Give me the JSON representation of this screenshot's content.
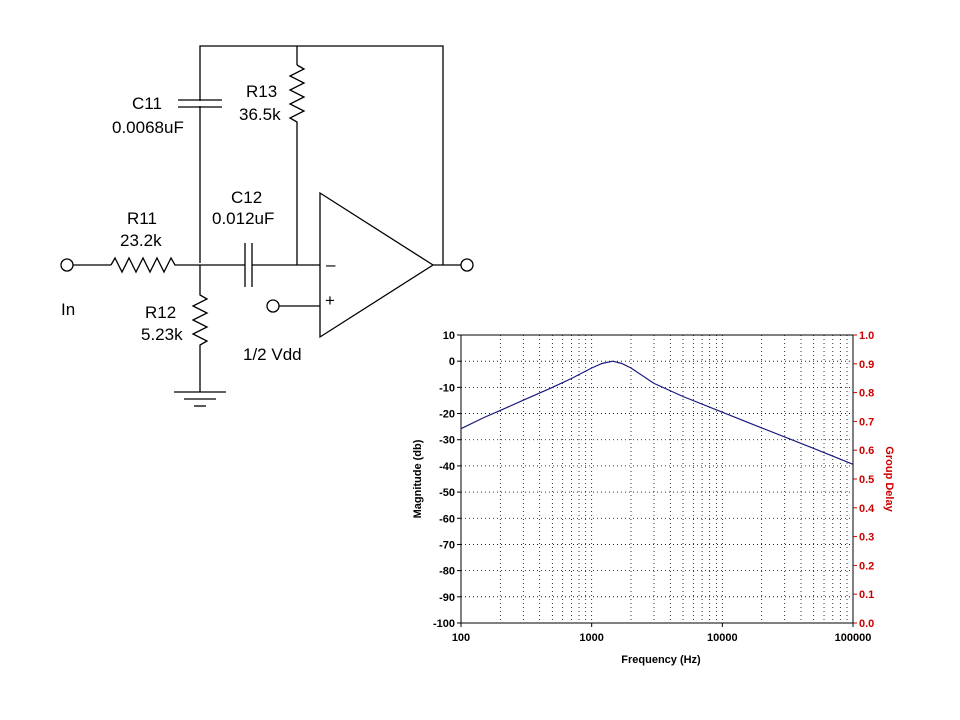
{
  "schematic": {
    "components": {
      "c11": {
        "ref": "C11",
        "value": "0.0068uF"
      },
      "r13": {
        "ref": "R13",
        "value": "36.5k"
      },
      "c12": {
        "ref": "C12",
        "value": "0.012uF"
      },
      "r11": {
        "ref": "R11",
        "value": "23.2k"
      },
      "r12": {
        "ref": "R12",
        "value": "5.23k"
      }
    },
    "input_label": "In",
    "reference_label": "1/2 Vdd",
    "opamp": {
      "minus": "–",
      "plus": "+"
    }
  },
  "chart_data": {
    "type": "line",
    "x_scale": "log",
    "xlabel": "Frequency (Hz)",
    "ylabel": "Magnitude (db)",
    "y2label": "Group Delay",
    "xlim": [
      100,
      100000
    ],
    "ylim": [
      -100,
      10
    ],
    "y2lim": [
      0.0,
      1.0
    ],
    "x_ticks": [
      "100",
      "1000",
      "10000",
      "100000"
    ],
    "y_ticks": [
      "10",
      "0",
      "-10",
      "-20",
      "-30",
      "-40",
      "-50",
      "-60",
      "-70",
      "-80",
      "-90",
      "-100"
    ],
    "y2_ticks": [
      "1.0",
      "0.9",
      "0.8",
      "0.7",
      "0.6",
      "0.5",
      "0.4",
      "0.3",
      "0.2",
      "0.1",
      "0.0"
    ],
    "grid": true,
    "colors": {
      "magnitude": "#1a1a80",
      "group_delay_axis": "#cc0000"
    },
    "series": [
      {
        "x": [
          100,
          150,
          200,
          300,
          500,
          700,
          1000,
          1200,
          1450,
          1700,
          2000,
          3000,
          5000,
          10000,
          20000,
          50000,
          100000
        ],
        "y": [
          -25.8,
          -21.5,
          -18.8,
          -14.9,
          -10.0,
          -6.6,
          -2.6,
          -0.9,
          0,
          -0.9,
          -2.6,
          -8.5,
          -13.5,
          -19.5,
          -25.5,
          -33.3,
          -39.4
        ]
      }
    ]
  }
}
